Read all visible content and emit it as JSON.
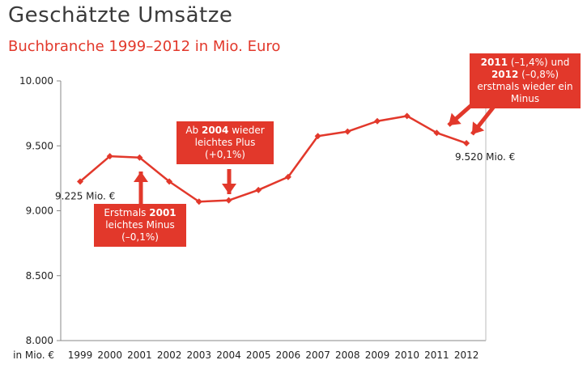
{
  "title": "Geschätzte Umsätze",
  "subtitle": "Buchbranche 1999–2012 in Mio. Euro",
  "chart_data": {
    "type": "line",
    "title": "Geschätzte Umsätze",
    "subtitle": "Buchbranche 1999–2012 in Mio. Euro",
    "x_unit_label": "in Mio. €",
    "categories": [
      "1999",
      "2000",
      "2001",
      "2002",
      "2003",
      "2004",
      "2005",
      "2006",
      "2007",
      "2008",
      "2009",
      "2010",
      "2011",
      "2012"
    ],
    "series": [
      {
        "values": [
          9225,
          9420,
          9410,
          9225,
          9070,
          9080,
          9160,
          9260,
          9575,
          9610,
          9690,
          9730,
          9600,
          9520
        ]
      }
    ],
    "yticks": [
      "8.000",
      "8.500",
      "9.000",
      "9.500",
      "10.000"
    ],
    "ylim": [
      8000,
      10000
    ],
    "ytick_values": [
      8000,
      8500,
      9000,
      9500,
      10000
    ],
    "color": "#e2382b",
    "grid": false,
    "data_labels": {
      "first": "9.225 Mio. €",
      "last": "9.520 Mio. €"
    },
    "annotations": [
      {
        "text_bold": "2001",
        "pre": "Erstmals ",
        "post": " leichtes Minus (–0,1%)"
      },
      {
        "text_bold": "2004",
        "pre": "Ab ",
        "post": " wieder leichtes Plus (+0,1%)"
      },
      {
        "text_bold": "2011",
        "text_bold2": "2012",
        "full": "2011 (–1,4%) und 2012 (–0,8%) erstmals wieder ein Minus"
      }
    ]
  },
  "callouts": {
    "c2001": {
      "pre": "Erstmals ",
      "bold": "2001",
      "post": "leichtes Minus",
      "post2": "(–0,1%)"
    },
    "c2004": {
      "pre": "Ab ",
      "bold": "2004",
      "post": " wieder",
      "line2": "leichtes Plus",
      "line3": "(+0,1%)"
    },
    "c2011": {
      "bold1": "2011",
      "mid1": " (–1,4%) und",
      "bold2": "2012",
      "mid2": " (–0,8%)",
      "line3": "erstmals wieder ein",
      "line4": "Minus"
    }
  }
}
